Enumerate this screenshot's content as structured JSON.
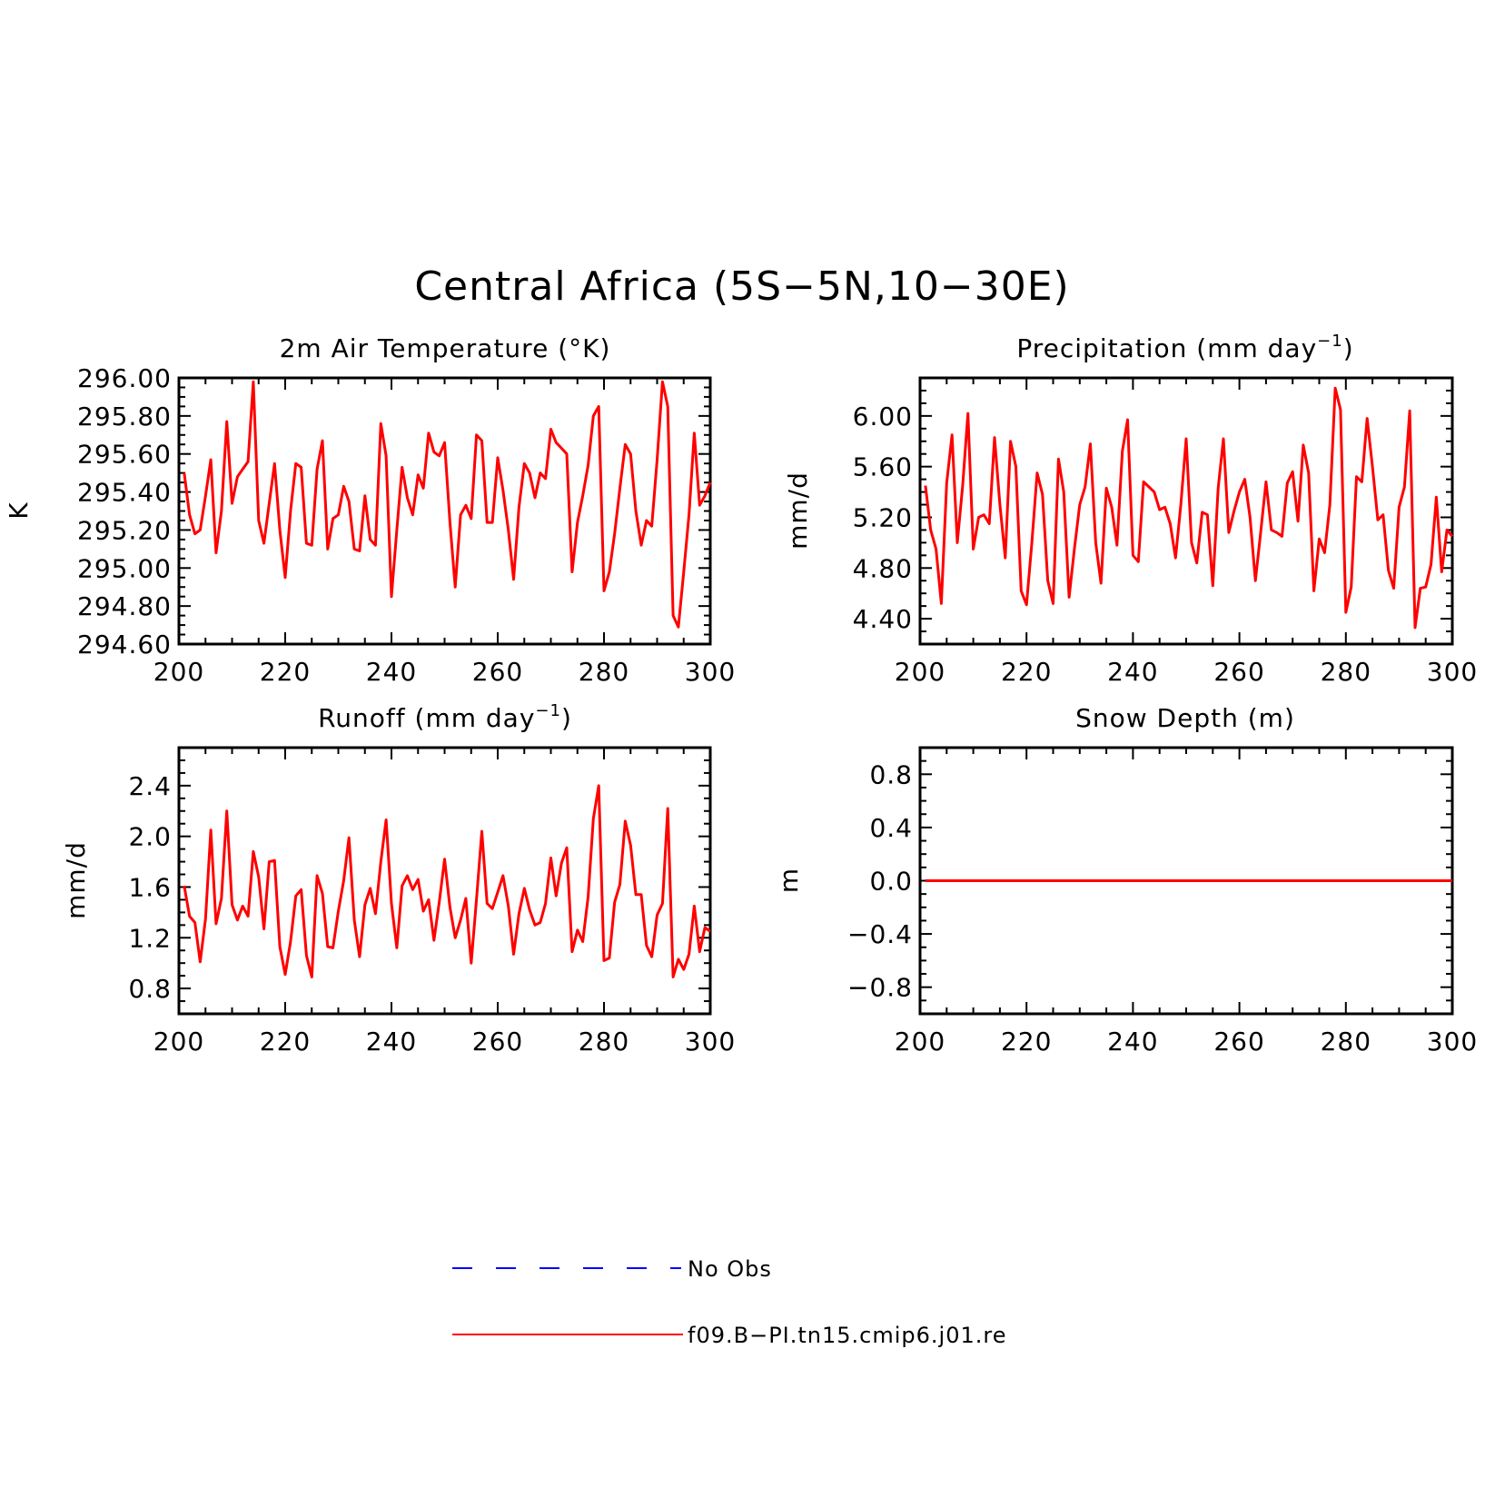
{
  "title": "Central Africa (5S−5N,10−30E)",
  "colors": {
    "model": "#ff0000",
    "obs": "#0000ff",
    "axis": "#000000"
  },
  "legend": [
    {
      "label": "No Obs",
      "color": "#0000ff",
      "style": "dashed"
    },
    {
      "label": "f09.B−PI.tn15.cmip6.j01.re",
      "color": "#ff0000",
      "style": "solid"
    }
  ],
  "chart_data": [
    {
      "type": "line",
      "title": "2m Air Temperature (°K)",
      "title_main": "2m Air Temperature (°K)",
      "title_sup": "",
      "title_end": "",
      "ylabel": "K",
      "xlim": [
        200,
        300
      ],
      "ylim": [
        294.6,
        296.0
      ],
      "xticks": [
        "200",
        "220",
        "240",
        "260",
        "280",
        "300"
      ],
      "yticks": [
        "294.60",
        "294.80",
        "295.00",
        "295.20",
        "295.40",
        "295.60",
        "295.80",
        "296.00"
      ],
      "x_start": 201,
      "series": [
        {
          "name": "f09.B−PI.tn15.cmip6.j01.re",
          "values": [
            295.5,
            295.28,
            295.18,
            295.2,
            295.38,
            295.57,
            295.08,
            295.3,
            295.77,
            295.34,
            295.48,
            295.52,
            295.56,
            295.98,
            295.25,
            295.13,
            295.34,
            295.55,
            295.2,
            294.95,
            295.3,
            295.55,
            295.53,
            295.13,
            295.12,
            295.52,
            295.67,
            295.1,
            295.26,
            295.28,
            295.43,
            295.35,
            295.1,
            295.09,
            295.38,
            295.15,
            295.12,
            295.76,
            295.59,
            294.85,
            295.2,
            295.53,
            295.37,
            295.28,
            295.49,
            295.42,
            295.71,
            295.61,
            295.59,
            295.66,
            295.24,
            294.9,
            295.28,
            295.33,
            295.26,
            295.7,
            295.67,
            295.24,
            295.24,
            295.58,
            295.41,
            295.2,
            294.94,
            295.32,
            295.55,
            295.5,
            295.37,
            295.5,
            295.47,
            295.73,
            295.66,
            295.63,
            295.6,
            294.98,
            295.24,
            295.38,
            295.54,
            295.8,
            295.85,
            294.88,
            294.98,
            295.18,
            295.42,
            295.65,
            295.6,
            295.3,
            295.12,
            295.25,
            295.22,
            295.57,
            295.98,
            295.85,
            294.75,
            294.69,
            294.98,
            295.28,
            295.71,
            295.33,
            295.38,
            295.45
          ]
        }
      ]
    },
    {
      "type": "line",
      "title": "Precipitation (mm day⁻¹)",
      "title_main": "Precipitation (mm day",
      "title_sup": "−1",
      "title_end": ")",
      "ylabel": "mm/d",
      "xlim": [
        200,
        300
      ],
      "ylim": [
        4.2,
        6.3
      ],
      "xticks": [
        "200",
        "220",
        "240",
        "260",
        "280",
        "300"
      ],
      "yticks": [
        "4.40",
        "4.80",
        "5.20",
        "5.60",
        "6.00"
      ],
      "x_start": 201,
      "series": [
        {
          "name": "f09.B−PI.tn15.cmip6.j01.re",
          "values": [
            5.45,
            5.1,
            4.95,
            4.52,
            5.47,
            5.85,
            5.0,
            5.45,
            6.02,
            4.95,
            5.2,
            5.22,
            5.15,
            5.83,
            5.3,
            4.88,
            5.8,
            5.6,
            4.62,
            4.51,
            5.0,
            5.55,
            5.38,
            4.7,
            4.52,
            5.66,
            5.4,
            4.57,
            4.95,
            5.3,
            5.44,
            5.78,
            5.0,
            4.68,
            5.43,
            5.28,
            4.98,
            5.72,
            5.97,
            4.9,
            4.85,
            5.48,
            5.44,
            5.4,
            5.26,
            5.28,
            5.15,
            4.88,
            5.3,
            5.82,
            5.0,
            4.84,
            5.24,
            5.22,
            4.66,
            5.43,
            5.82,
            5.08,
            5.25,
            5.4,
            5.5,
            5.2,
            4.7,
            5.08,
            5.48,
            5.1,
            5.08,
            5.05,
            5.47,
            5.56,
            5.17,
            5.77,
            5.55,
            4.62,
            5.03,
            4.92,
            5.3,
            6.22,
            6.05,
            4.45,
            4.65,
            5.52,
            5.48,
            5.98,
            5.6,
            5.18,
            5.22,
            4.78,
            4.64,
            5.28,
            5.44,
            6.04,
            4.33,
            4.64,
            4.65,
            4.83,
            5.36,
            4.77,
            5.1,
            5.05
          ]
        }
      ]
    },
    {
      "type": "line",
      "title": "Runoff (mm day⁻¹)",
      "title_main": "Runoff (mm day",
      "title_sup": "−1",
      "title_end": ")",
      "ylabel": "mm/d",
      "xlim": [
        200,
        300
      ],
      "ylim": [
        0.6,
        2.7
      ],
      "xticks": [
        "200",
        "220",
        "240",
        "260",
        "280",
        "300"
      ],
      "yticks": [
        "0.8",
        "1.2",
        "1.6",
        "2.0",
        "2.4"
      ],
      "x_start": 201,
      "series": [
        {
          "name": "f09.B−PI.tn15.cmip6.j01.re",
          "values": [
            1.61,
            1.37,
            1.32,
            1.01,
            1.35,
            2.05,
            1.31,
            1.51,
            2.2,
            1.46,
            1.34,
            1.45,
            1.37,
            1.88,
            1.68,
            1.27,
            1.8,
            1.81,
            1.13,
            0.91,
            1.17,
            1.53,
            1.58,
            1.06,
            0.89,
            1.69,
            1.55,
            1.13,
            1.12,
            1.41,
            1.65,
            1.99,
            1.34,
            1.05,
            1.46,
            1.59,
            1.39,
            1.8,
            2.13,
            1.47,
            1.12,
            1.61,
            1.69,
            1.58,
            1.66,
            1.41,
            1.5,
            1.18,
            1.48,
            1.82,
            1.44,
            1.2,
            1.34,
            1.51,
            1.0,
            1.5,
            2.04,
            1.47,
            1.43,
            1.56,
            1.69,
            1.45,
            1.07,
            1.39,
            1.59,
            1.42,
            1.3,
            1.32,
            1.47,
            1.83,
            1.53,
            1.79,
            1.91,
            1.09,
            1.26,
            1.17,
            1.52,
            2.14,
            2.4,
            1.02,
            1.04,
            1.48,
            1.62,
            2.12,
            1.93,
            1.54,
            1.54,
            1.14,
            1.05,
            1.38,
            1.47,
            2.22,
            0.89,
            1.03,
            0.95,
            1.07,
            1.45,
            1.09,
            1.28,
            1.25
          ]
        }
      ]
    },
    {
      "type": "line",
      "title": "Snow Depth (m)",
      "title_main": "Snow Depth (m)",
      "title_sup": "",
      "title_end": "",
      "ylabel": "m",
      "xlim": [
        200,
        300
      ],
      "ylim": [
        -1.0,
        1.0
      ],
      "xticks": [
        "200",
        "220",
        "240",
        "260",
        "280",
        "300"
      ],
      "yticks": [
        "−0.8",
        "−0.4",
        "0.0",
        "0.4",
        "0.8"
      ],
      "x_start": 201,
      "series": [
        {
          "name": "f09.B−PI.tn15.cmip6.j01.re",
          "constant": 0.0
        }
      ]
    }
  ]
}
